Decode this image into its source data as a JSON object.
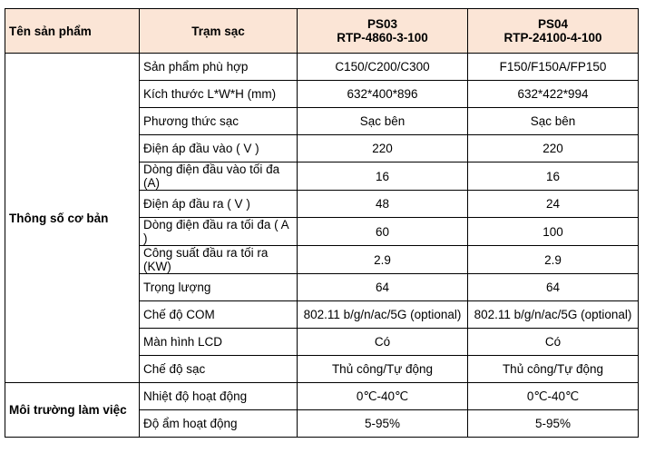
{
  "header": {
    "product_name": "Tên sản phẩm",
    "station": "Trạm sạc",
    "models": [
      {
        "name": "PS03",
        "code": "RTP-4860-3-100"
      },
      {
        "name": "PS04",
        "code": "RTP-24100-4-100"
      }
    ]
  },
  "groups": [
    {
      "category": "Thông số cơ bản",
      "rows": [
        {
          "param": "Sản phẩm phù hợp",
          "values": [
            "C150/C200/C300",
            "F150/F150A/FP150"
          ]
        },
        {
          "param": "Kích thước L*W*H (mm)",
          "values": [
            "632*400*896",
            "632*422*994"
          ]
        },
        {
          "param": "Phương thức sạc",
          "values": [
            "Sạc bên",
            "Sạc bên"
          ]
        },
        {
          "param": "Điện áp đầu vào ( V )",
          "values": [
            "220",
            "220"
          ]
        },
        {
          "param": "Dòng điện đầu vào tối đa (A)",
          "values": [
            "16",
            "16"
          ]
        },
        {
          "param": "Điện áp đầu ra ( V )",
          "values": [
            "48",
            "24"
          ]
        },
        {
          "param": "Dòng điện đầu ra tối đa ( A )",
          "values": [
            "60",
            "100"
          ]
        },
        {
          "param": "Công suất đầu ra tối ra (KW)",
          "values": [
            "2.9",
            "2.9"
          ]
        },
        {
          "param": "Trọng lượng",
          "values": [
            "64",
            "64"
          ]
        },
        {
          "param": "Chế độ COM",
          "values": [
            "802.11 b/g/n/ac/5G (optional)",
            "802.11 b/g/n/ac/5G (optional)"
          ]
        },
        {
          "param": "Màn hình LCD",
          "values": [
            "Có",
            "Có"
          ]
        },
        {
          "param": "Chế độ sạc",
          "values": [
            "Thủ công/Tự động",
            "Thủ công/Tự động"
          ]
        }
      ]
    },
    {
      "category": "Môi trường làm  việc",
      "rows": [
        {
          "param": "Nhiệt độ hoạt động",
          "values": [
            "0℃-40℃",
            "0℃-40℃"
          ]
        },
        {
          "param": "Độ ẩm hoạt động",
          "values": [
            "5-95%",
            "5-95%"
          ]
        }
      ]
    }
  ],
  "colors": {
    "header_background": "#fbe5d6",
    "border": "#000000"
  }
}
